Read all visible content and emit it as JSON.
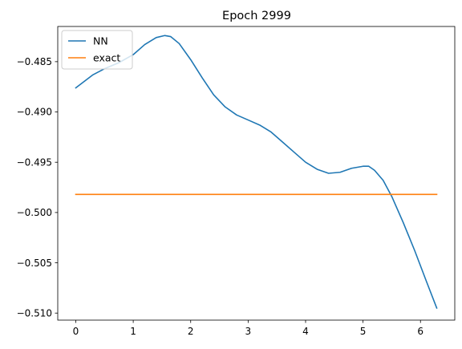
{
  "chart_data": {
    "type": "line",
    "title": "Epoch 2999",
    "xlabel": "",
    "ylabel": "",
    "xlim": [
      -0.314,
      6.597
    ],
    "ylim": [
      -0.5107,
      -0.4815
    ],
    "x_ticks": [
      0,
      1,
      2,
      3,
      4,
      5,
      6
    ],
    "x_tick_labels": [
      "0",
      "1",
      "2",
      "3",
      "4",
      "5",
      "6"
    ],
    "y_ticks": [
      -0.485,
      -0.49,
      -0.495,
      -0.5,
      -0.505,
      -0.51
    ],
    "y_tick_labels": [
      "−0.485",
      "−0.490",
      "−0.495",
      "−0.500",
      "−0.505",
      "−0.510"
    ],
    "grid": false,
    "legend_position": "upper-left",
    "series": [
      {
        "name": "NN",
        "color": "#1f77b4",
        "x": [
          0.0,
          0.3,
          0.5,
          0.75,
          1.0,
          1.2,
          1.4,
          1.55,
          1.65,
          1.8,
          2.0,
          2.2,
          2.4,
          2.6,
          2.8,
          3.0,
          3.2,
          3.4,
          3.6,
          3.8,
          4.0,
          4.2,
          4.4,
          4.6,
          4.8,
          5.0,
          5.1,
          5.2,
          5.35,
          5.5,
          5.7,
          5.9,
          6.1,
          6.283
        ],
        "y": [
          -0.4876,
          -0.4863,
          -0.4857,
          -0.4851,
          -0.4843,
          -0.4833,
          -0.4826,
          -0.4824,
          -0.4825,
          -0.4832,
          -0.4848,
          -0.4866,
          -0.4883,
          -0.4895,
          -0.4903,
          -0.4908,
          -0.4913,
          -0.492,
          -0.493,
          -0.494,
          -0.495,
          -0.4957,
          -0.4961,
          -0.496,
          -0.4956,
          -0.4954,
          -0.4954,
          -0.4958,
          -0.4968,
          -0.4984,
          -0.501,
          -0.5038,
          -0.5068,
          -0.5095
        ]
      },
      {
        "name": "exact",
        "color": "#ff7f0e",
        "x": [
          0.0,
          6.283
        ],
        "y": [
          -0.4982,
          -0.4982
        ]
      }
    ]
  }
}
